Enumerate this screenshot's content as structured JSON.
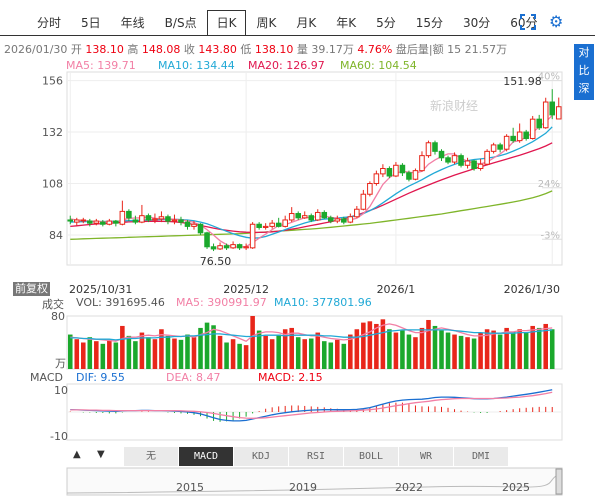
{
  "tabs": [
    {
      "label": "分时",
      "active": false
    },
    {
      "label": "5日",
      "active": false
    },
    {
      "label": "年线",
      "active": false
    },
    {
      "label": "B/S点",
      "active": false
    },
    {
      "label": "日K",
      "active": true
    },
    {
      "label": "周K",
      "active": false
    },
    {
      "label": "月K",
      "active": false
    },
    {
      "label": "年K",
      "active": false
    },
    {
      "label": "5分",
      "active": false
    },
    {
      "label": "15分",
      "active": false
    },
    {
      "label": "30分",
      "active": false
    },
    {
      "label": "60分",
      "active": false
    }
  ],
  "quote_line": {
    "date": "2026/01/30",
    "open_label": "开",
    "open": "138.10",
    "high_label": "高",
    "high": "148.08",
    "close_label": "收",
    "close": "143.80",
    "low_label": "低",
    "low": "138.10",
    "volume_label": "量",
    "volume": "39.17万",
    "change_pct": "4.76%",
    "after_label": "盘后量|额",
    "after_value": "15 21.57万"
  },
  "ma": {
    "ma5": {
      "label": "MA5:",
      "value": "139.71",
      "color": "#f27fa5"
    },
    "ma10": {
      "label": "MA10:",
      "value": "134.44",
      "color": "#21a9d6"
    },
    "ma20": {
      "label": "MA20:",
      "value": "126.97",
      "color": "#e0174f"
    },
    "ma60": {
      "label": "MA60:",
      "value": "104.54",
      "color": "#7fb52a"
    }
  },
  "side_button": "对比深指",
  "fuquan_label": "前复权",
  "watermark": "新浪财经",
  "volume_legend": {
    "title": "成交",
    "vol_label": "VOL:",
    "vol_value": "391695.46",
    "ma5_label": "MA5:",
    "ma5_value": "390991.97",
    "ma10_label": "MA10:",
    "ma10_value": "377801.96",
    "axis_top": "80",
    "axis_unit": "万"
  },
  "macd_legend": {
    "title": "MACD",
    "dif_label": "DIF:",
    "dif_value": "9.55",
    "dea_label": "DEA:",
    "dea_value": "8.47",
    "macd_label": "MACD:",
    "macd_value": "2.15",
    "axis_top": "10",
    "axis_bottom": "-10"
  },
  "indicator_tabs": [
    {
      "label": "无",
      "active": false
    },
    {
      "label": "MACD",
      "active": true
    },
    {
      "label": "KDJ",
      "active": false
    },
    {
      "label": "RSI",
      "active": false
    },
    {
      "label": "BOLL",
      "active": false
    },
    {
      "label": "WR",
      "active": false
    },
    {
      "label": "DMI",
      "active": false
    }
  ],
  "navigator_years": [
    "2015",
    "2019",
    "2022",
    "2025"
  ],
  "chart_data": {
    "type": "candlestick",
    "price_axis": {
      "ticks": [
        156,
        132,
        108,
        84
      ],
      "ylim": [
        70,
        160
      ]
    },
    "pct_axis": [
      "40%",
      "24%",
      "-3%"
    ],
    "date_labels": [
      "2025/10/31",
      "2025/12",
      "2026/1",
      "2026/1/30"
    ],
    "annotations": {
      "high": "151.98",
      "low": "76.50"
    },
    "candles": [
      {
        "o": 91.0,
        "c": 90.5,
        "h": 93.0,
        "l": 89.0
      },
      {
        "o": 90.0,
        "c": 91.0,
        "h": 92.0,
        "l": 88.5
      },
      {
        "o": 91.0,
        "c": 91.0,
        "h": 92.0,
        "l": 89.5
      },
      {
        "o": 90.5,
        "c": 89.5,
        "h": 91.5,
        "l": 88.0
      },
      {
        "o": 89.5,
        "c": 90.5,
        "h": 91.5,
        "l": 88.5
      },
      {
        "o": 90.0,
        "c": 89.0,
        "h": 91.0,
        "l": 88.0
      },
      {
        "o": 89.0,
        "c": 90.5,
        "h": 91.5,
        "l": 88.5
      },
      {
        "o": 90.5,
        "c": 89.5,
        "h": 91.0,
        "l": 88.0
      },
      {
        "o": 89.0,
        "c": 95.0,
        "h": 100.0,
        "l": 88.5
      },
      {
        "o": 95.0,
        "c": 92.0,
        "h": 96.0,
        "l": 90.5
      },
      {
        "o": 91.0,
        "c": 90.0,
        "h": 93.0,
        "l": 89.0
      },
      {
        "o": 90.0,
        "c": 93.0,
        "h": 98.0,
        "l": 89.5
      },
      {
        "o": 93.0,
        "c": 91.0,
        "h": 94.0,
        "l": 90.0
      },
      {
        "o": 91.0,
        "c": 91.5,
        "h": 94.0,
        "l": 89.5
      },
      {
        "o": 91.5,
        "c": 92.5,
        "h": 95.0,
        "l": 90.0
      },
      {
        "o": 92.5,
        "c": 90.5,
        "h": 93.5,
        "l": 89.0
      },
      {
        "o": 90.5,
        "c": 91.0,
        "h": 93.5,
        "l": 89.0
      },
      {
        "o": 91.0,
        "c": 90.0,
        "h": 92.5,
        "l": 88.5
      },
      {
        "o": 90.0,
        "c": 88.0,
        "h": 91.0,
        "l": 86.5
      },
      {
        "o": 88.0,
        "c": 89.0,
        "h": 90.5,
        "l": 86.5
      },
      {
        "o": 89.0,
        "c": 85.0,
        "h": 89.5,
        "l": 84.0
      },
      {
        "o": 85.0,
        "c": 78.5,
        "h": 85.5,
        "l": 77.5
      },
      {
        "o": 78.5,
        "c": 77.5,
        "h": 80.0,
        "l": 76.5
      },
      {
        "o": 77.5,
        "c": 79.0,
        "h": 80.5,
        "l": 77.0
      },
      {
        "o": 79.0,
        "c": 78.0,
        "h": 80.0,
        "l": 77.0
      },
      {
        "o": 78.0,
        "c": 79.5,
        "h": 81.0,
        "l": 77.5
      },
      {
        "o": 79.5,
        "c": 78.0,
        "h": 80.0,
        "l": 77.0
      },
      {
        "o": 78.0,
        "c": 78.5,
        "h": 80.0,
        "l": 77.0
      },
      {
        "o": 78.0,
        "c": 89.0,
        "h": 90.0,
        "l": 77.5
      },
      {
        "o": 89.0,
        "c": 87.5,
        "h": 90.0,
        "l": 86.5
      },
      {
        "o": 87.5,
        "c": 88.0,
        "h": 89.5,
        "l": 86.5
      },
      {
        "o": 88.0,
        "c": 89.5,
        "h": 91.0,
        "l": 87.0
      },
      {
        "o": 89.5,
        "c": 88.0,
        "h": 92.0,
        "l": 87.5
      },
      {
        "o": 88.0,
        "c": 91.0,
        "h": 93.0,
        "l": 87.5
      },
      {
        "o": 91.0,
        "c": 94.0,
        "h": 97.0,
        "l": 90.0
      },
      {
        "o": 94.0,
        "c": 92.0,
        "h": 95.0,
        "l": 91.0
      },
      {
        "o": 92.0,
        "c": 93.0,
        "h": 95.0,
        "l": 91.5
      },
      {
        "o": 93.0,
        "c": 91.0,
        "h": 94.0,
        "l": 90.0
      },
      {
        "o": 91.0,
        "c": 94.5,
        "h": 96.0,
        "l": 90.5
      },
      {
        "o": 94.5,
        "c": 92.0,
        "h": 95.5,
        "l": 91.5
      },
      {
        "o": 92.0,
        "c": 90.5,
        "h": 93.0,
        "l": 89.5
      },
      {
        "o": 90.5,
        "c": 91.5,
        "h": 93.0,
        "l": 89.5
      },
      {
        "o": 91.5,
        "c": 90.0,
        "h": 92.5,
        "l": 89.0
      },
      {
        "o": 90.0,
        "c": 92.5,
        "h": 94.0,
        "l": 89.5
      },
      {
        "o": 92.5,
        "c": 96.0,
        "h": 97.5,
        "l": 92.0
      },
      {
        "o": 96.0,
        "c": 103.0,
        "h": 105.0,
        "l": 95.5
      },
      {
        "o": 103.0,
        "c": 108.0,
        "h": 109.0,
        "l": 102.0
      },
      {
        "o": 108.0,
        "c": 112.5,
        "h": 114.0,
        "l": 107.0
      },
      {
        "o": 112.5,
        "c": 115.0,
        "h": 117.0,
        "l": 111.0
      },
      {
        "o": 115.0,
        "c": 111.5,
        "h": 116.0,
        "l": 110.5
      },
      {
        "o": 111.5,
        "c": 116.5,
        "h": 118.0,
        "l": 111.0
      },
      {
        "o": 116.5,
        "c": 113.0,
        "h": 117.5,
        "l": 111.5
      },
      {
        "o": 113.0,
        "c": 110.0,
        "h": 114.0,
        "l": 109.0
      },
      {
        "o": 110.0,
        "c": 114.0,
        "h": 115.0,
        "l": 109.5
      },
      {
        "o": 114.0,
        "c": 121.0,
        "h": 123.0,
        "l": 113.5
      },
      {
        "o": 121.0,
        "c": 127.0,
        "h": 128.0,
        "l": 120.0
      },
      {
        "o": 127.0,
        "c": 123.0,
        "h": 128.0,
        "l": 121.5
      },
      {
        "o": 123.0,
        "c": 120.0,
        "h": 124.0,
        "l": 118.5
      },
      {
        "o": 120.0,
        "c": 118.0,
        "h": 121.0,
        "l": 117.0
      },
      {
        "o": 118.0,
        "c": 121.0,
        "h": 122.5,
        "l": 117.0
      },
      {
        "o": 121.0,
        "c": 116.5,
        "h": 122.0,
        "l": 115.5
      },
      {
        "o": 116.5,
        "c": 118.5,
        "h": 120.0,
        "l": 115.0
      },
      {
        "o": 118.5,
        "c": 115.0,
        "h": 119.0,
        "l": 114.0
      },
      {
        "o": 115.0,
        "c": 117.0,
        "h": 119.5,
        "l": 114.0
      },
      {
        "o": 117.0,
        "c": 123.0,
        "h": 124.0,
        "l": 116.5
      },
      {
        "o": 123.0,
        "c": 126.0,
        "h": 127.0,
        "l": 122.0
      },
      {
        "o": 126.0,
        "c": 124.0,
        "h": 127.0,
        "l": 122.5
      },
      {
        "o": 124.0,
        "c": 130.0,
        "h": 131.0,
        "l": 123.0
      },
      {
        "o": 130.0,
        "c": 128.0,
        "h": 134.0,
        "l": 127.0
      },
      {
        "o": 128.0,
        "c": 132.0,
        "h": 136.0,
        "l": 127.0
      },
      {
        "o": 132.0,
        "c": 129.0,
        "h": 133.0,
        "l": 128.0
      },
      {
        "o": 129.0,
        "c": 138.0,
        "h": 139.5,
        "l": 128.5
      },
      {
        "o": 138.0,
        "c": 134.0,
        "h": 140.0,
        "l": 133.0
      },
      {
        "o": 134.0,
        "c": 146.0,
        "h": 148.0,
        "l": 133.5
      },
      {
        "o": 146.0,
        "c": 140.0,
        "h": 152.0,
        "l": 138.0
      },
      {
        "o": 138.1,
        "c": 143.8,
        "h": 148.08,
        "l": 138.1
      }
    ],
    "ma5": [
      91.5,
      91.0,
      90.8,
      90.5,
      90.4,
      90.2,
      90.1,
      90.0,
      91.0,
      91.8,
      91.9,
      92.0,
      92.5,
      91.8,
      91.5,
      91.6,
      91.3,
      91.1,
      90.6,
      89.8,
      88.6,
      86.5,
      84.0,
      81.3,
      79.5,
      78.4,
      78.4,
      78.6,
      80.4,
      82.5,
      84.4,
      86.5,
      88.4,
      88.8,
      89.9,
      91.0,
      92.0,
      92.2,
      92.6,
      92.8,
      92.2,
      91.9,
      91.1,
      91.1,
      91.8,
      93.9,
      97.3,
      102.4,
      107.6,
      110.7,
      112.8,
      113.7,
      113.3,
      112.9,
      113.7,
      117.0,
      119.0,
      120.6,
      121.8,
      121.8,
      119.7,
      118.4,
      117.5,
      117.2,
      118.0,
      119.9,
      121.8,
      124.0,
      127.4,
      128.0,
      129.6,
      131.8,
      134.4,
      136.8,
      139.7
    ],
    "ma10": [
      90.0,
      90.1,
      90.2,
      90.3,
      90.3,
      90.3,
      90.4,
      90.4,
      90.5,
      90.7,
      90.8,
      90.9,
      91.0,
      91.1,
      91.2,
      91.3,
      91.3,
      91.2,
      91.0,
      90.6,
      90.0,
      89.2,
      88.1,
      86.9,
      85.7,
      84.6,
      83.6,
      82.9,
      82.5,
      82.7,
      83.3,
      84.3,
      85.4,
      86.5,
      87.6,
      88.6,
      89.6,
      90.4,
      91.0,
      91.4,
      91.6,
      91.9,
      92.2,
      92.5,
      93.0,
      93.9,
      95.3,
      97.0,
      99.0,
      101.1,
      103.2,
      105.1,
      106.8,
      108.3,
      109.8,
      111.5,
      113.1,
      114.5,
      115.8,
      116.9,
      117.9,
      118.7,
      119.2,
      119.5,
      119.8,
      120.3,
      121.0,
      121.9,
      123.1,
      124.4,
      125.9,
      127.5,
      129.4,
      131.4,
      134.4
    ],
    "ma20": [
      88.0,
      88.3,
      88.6,
      88.9,
      89.1,
      89.3,
      89.5,
      89.7,
      89.9,
      90.1,
      90.2,
      90.3,
      90.4,
      90.4,
      90.4,
      90.3,
      90.1,
      89.8,
      89.4,
      88.9,
      88.4,
      87.8,
      87.2,
      86.6,
      86.2,
      85.8,
      85.5,
      85.3,
      85.2,
      85.2,
      85.3,
      85.5,
      85.8,
      86.2,
      86.7,
      87.2,
      87.8,
      88.4,
      89.0,
      89.6,
      90.2,
      90.9,
      91.6,
      92.4,
      93.3,
      94.3,
      95.4,
      96.6,
      97.9,
      99.3,
      100.7,
      102.1,
      103.5,
      104.8,
      106.1,
      107.3,
      108.5,
      109.7,
      110.8,
      111.9,
      112.9,
      113.9,
      114.9,
      115.8,
      116.7,
      117.6,
      118.5,
      119.4,
      120.3,
      121.2,
      122.2,
      123.2,
      124.3,
      125.5,
      126.97
    ],
    "ma60": [
      82.0,
      82.1,
      82.2,
      82.3,
      82.4,
      82.5,
      82.6,
      82.7,
      82.8,
      82.9,
      83.0,
      83.1,
      83.2,
      83.3,
      83.4,
      83.5,
      83.6,
      83.7,
      83.8,
      83.9,
      84.0,
      84.1,
      84.2,
      84.3,
      84.4,
      84.5,
      84.6,
      84.8,
      85.0,
      85.2,
      85.4,
      85.6,
      85.8,
      86.0,
      86.2,
      86.4,
      86.6,
      86.8,
      87.0,
      87.3,
      87.6,
      87.9,
      88.2,
      88.5,
      88.8,
      89.1,
      89.4,
      89.8,
      90.2,
      90.6,
      91.0,
      91.4,
      91.8,
      92.2,
      92.6,
      93.0,
      93.4,
      93.8,
      94.3,
      94.8,
      95.3,
      95.8,
      96.3,
      96.8,
      97.3,
      97.8,
      98.3,
      98.8,
      99.4,
      100.0,
      100.7,
      101.4,
      102.2,
      103.3,
      104.54
    ],
    "volume": {
      "ymax": 80,
      "values": [
        52,
        45,
        40,
        48,
        42,
        38,
        44,
        40,
        65,
        50,
        42,
        55,
        48,
        45,
        60,
        50,
        46,
        44,
        52,
        48,
        62,
        70,
        66,
        50,
        40,
        45,
        38,
        36,
        80,
        58,
        50,
        45,
        52,
        60,
        62,
        48,
        45,
        46,
        55,
        42,
        40,
        44,
        38,
        52,
        60,
        70,
        72,
        68,
        75,
        60,
        55,
        58,
        52,
        48,
        62,
        74,
        65,
        58,
        55,
        52,
        50,
        48,
        46,
        55,
        60,
        58,
        52,
        62,
        56,
        60,
        55,
        65,
        62,
        68,
        60
      ],
      "ma5": [
        48,
        47,
        46,
        45,
        45,
        44,
        43,
        42,
        46,
        48,
        48,
        50,
        51,
        50,
        52,
        51,
        50,
        49,
        50,
        48,
        52,
        55,
        60,
        58,
        54,
        50,
        46,
        42,
        50,
        54,
        56,
        56,
        55,
        52,
        54,
        54,
        52,
        50,
        50,
        48,
        46,
        45,
        44,
        45,
        48,
        52,
        56,
        62,
        66,
        68,
        66,
        62,
        58,
        55,
        55,
        58,
        60,
        62,
        60,
        58,
        55,
        52,
        50,
        50,
        51,
        53,
        54,
        56,
        56,
        58,
        58,
        59,
        60,
        61,
        62
      ],
      "ma10": [
        47,
        47,
        46,
        46,
        45,
        45,
        45,
        44,
        45,
        46,
        46,
        47,
        47,
        47,
        48,
        48,
        49,
        49,
        50,
        50,
        51,
        52,
        53,
        53,
        52,
        51,
        50,
        49,
        49,
        50,
        51,
        51,
        51,
        50,
        51,
        51,
        51,
        51,
        51,
        50,
        50,
        49,
        48,
        48,
        48,
        49,
        51,
        53,
        55,
        57,
        58,
        59,
        59,
        59,
        59,
        59,
        59,
        59,
        59,
        58,
        57,
        56,
        55,
        55,
        54,
        54,
        54,
        54,
        54,
        55,
        55,
        56,
        57,
        58,
        59
      ]
    },
    "macd": {
      "ylim": [
        -12,
        12
      ],
      "dif": [
        1.0,
        0.9,
        0.8,
        0.7,
        0.6,
        0.5,
        0.4,
        0.3,
        0.5,
        0.6,
        0.6,
        0.7,
        0.7,
        0.6,
        0.6,
        0.5,
        0.4,
        0.2,
        0.0,
        -0.3,
        -0.8,
        -1.6,
        -2.5,
        -3.2,
        -3.6,
        -3.8,
        -3.8,
        -3.6,
        -3.0,
        -2.4,
        -1.8,
        -1.2,
        -0.7,
        -0.3,
        0.1,
        0.4,
        0.6,
        0.8,
        0.9,
        1.0,
        1.0,
        1.0,
        1.0,
        1.0,
        1.1,
        1.4,
        1.9,
        2.6,
        3.4,
        4.1,
        4.7,
        5.1,
        5.3,
        5.4,
        5.5,
        5.8,
        6.2,
        6.4,
        6.4,
        6.3,
        6.1,
        5.9,
        5.7,
        5.6,
        5.6,
        5.8,
        6.1,
        6.4,
        6.8,
        7.2,
        7.6,
        8.0,
        8.5,
        9.0,
        9.55
      ],
      "dea": [
        0.9,
        0.9,
        0.9,
        0.8,
        0.8,
        0.7,
        0.7,
        0.6,
        0.6,
        0.6,
        0.6,
        0.6,
        0.6,
        0.6,
        0.6,
        0.6,
        0.6,
        0.5,
        0.4,
        0.3,
        0.1,
        -0.2,
        -0.6,
        -1.1,
        -1.6,
        -2.0,
        -2.4,
        -2.6,
        -2.7,
        -2.6,
        -2.5,
        -2.2,
        -1.9,
        -1.6,
        -1.3,
        -1.0,
        -0.7,
        -0.4,
        -0.2,
        0.0,
        0.2,
        0.3,
        0.4,
        0.5,
        0.6,
        0.8,
        1.0,
        1.3,
        1.7,
        2.2,
        2.7,
        3.1,
        3.6,
        4.0,
        4.3,
        4.6,
        5.0,
        5.3,
        5.5,
        5.7,
        5.8,
        5.8,
        5.8,
        5.8,
        5.8,
        5.8,
        5.9,
        6.0,
        6.2,
        6.4,
        6.7,
        7.0,
        7.4,
        7.9,
        8.47
      ],
      "hist": [
        0.2,
        0.0,
        -0.2,
        -0.2,
        -0.4,
        -0.4,
        -0.6,
        -0.6,
        -0.2,
        0.0,
        0.0,
        0.2,
        0.2,
        0.0,
        0.0,
        -0.2,
        -0.4,
        -0.6,
        -0.8,
        -1.2,
        -1.8,
        -2.8,
        -3.8,
        -4.2,
        -4.0,
        -3.6,
        -2.8,
        -2.0,
        -0.6,
        0.4,
        1.4,
        2.0,
        2.4,
        2.6,
        2.8,
        2.8,
        2.6,
        2.4,
        2.2,
        2.0,
        1.6,
        1.4,
        1.2,
        1.0,
        1.0,
        1.2,
        1.8,
        2.6,
        3.4,
        3.8,
        4.0,
        4.0,
        3.4,
        2.8,
        2.4,
        2.4,
        2.4,
        2.2,
        1.8,
        1.2,
        0.6,
        0.2,
        -0.2,
        -0.4,
        -0.4,
        0.0,
        0.4,
        0.8,
        1.2,
        1.6,
        1.8,
        2.0,
        2.2,
        2.2,
        2.15
      ]
    }
  }
}
